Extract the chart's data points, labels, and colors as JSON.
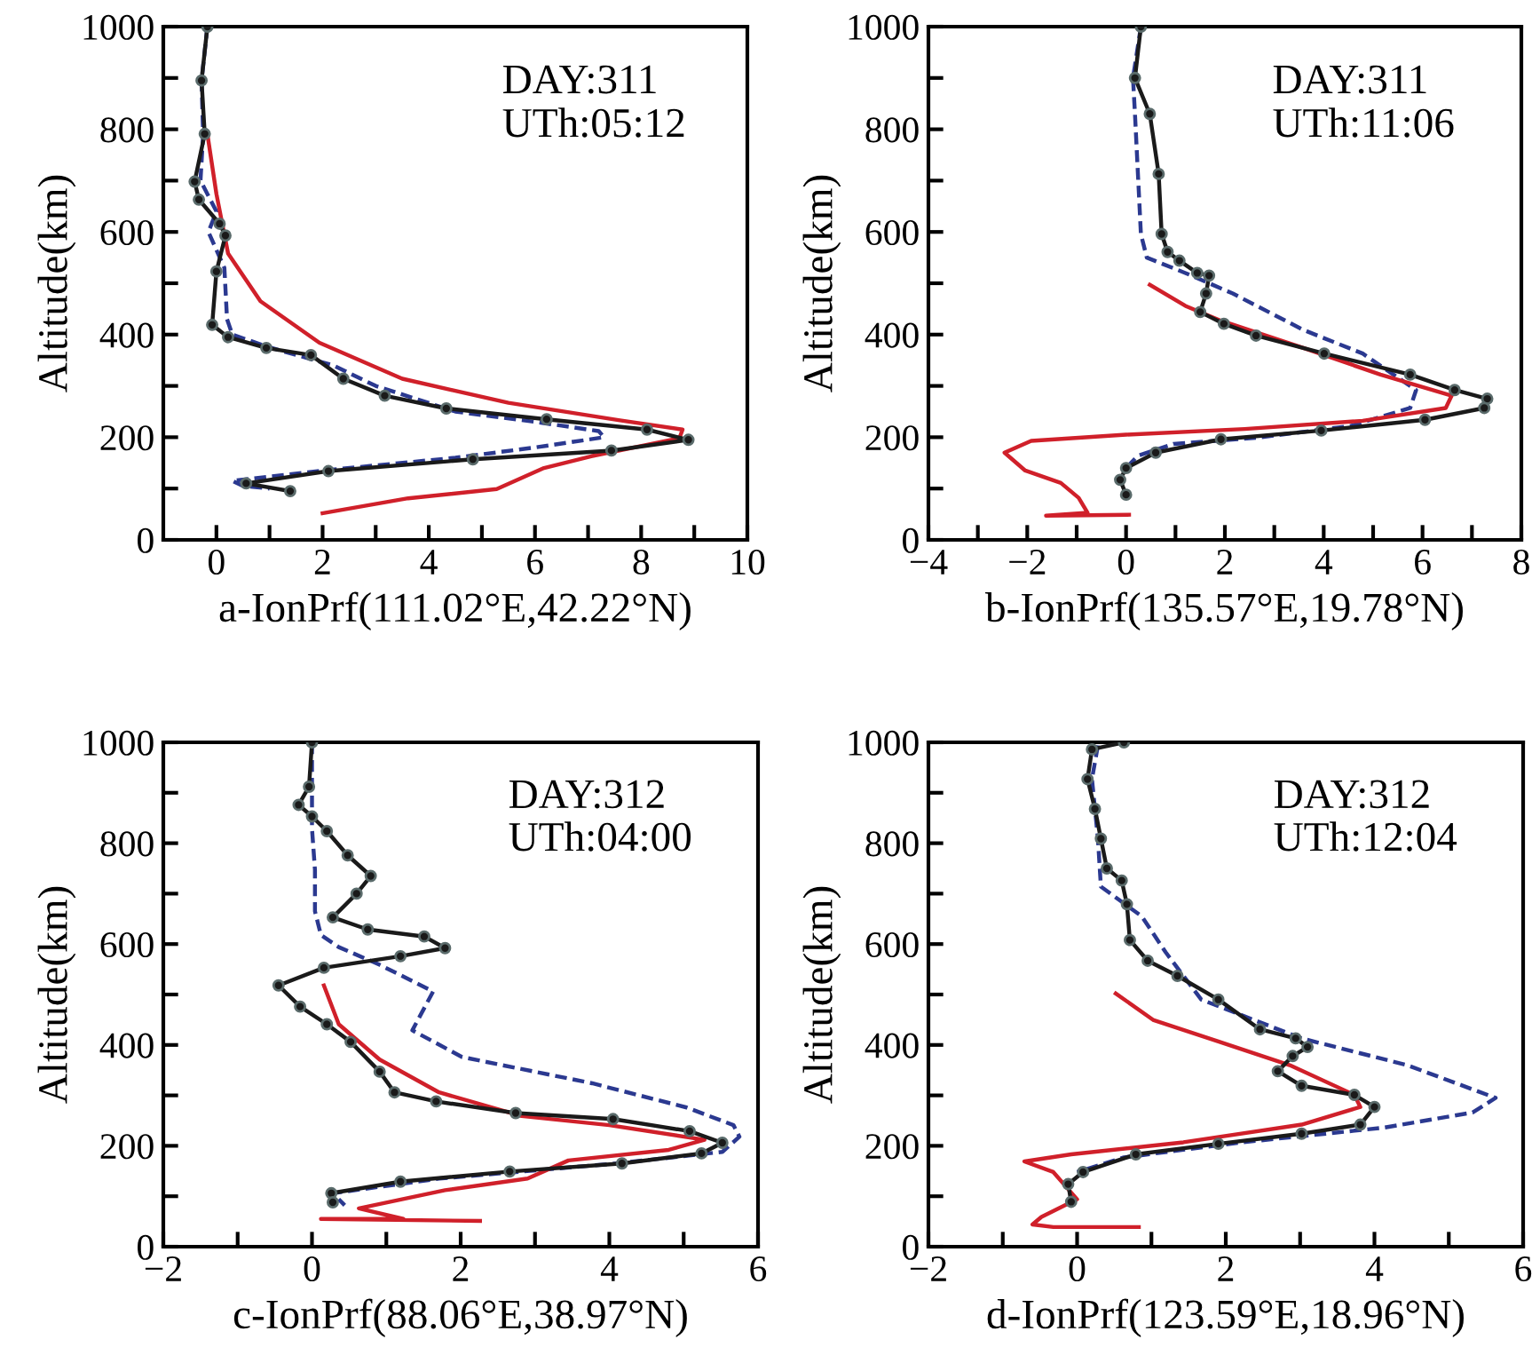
{
  "chart_data": [
    {
      "type": "line",
      "xlabel": "a-IonPrf(111.02°E,42.22°N)",
      "ylabel": "Altitude(km)",
      "annotations": [
        "DAY:311",
        "UTh:05:12"
      ],
      "xlim": [
        -1,
        10
      ],
      "xticks": [
        0,
        {
          "value": 1,
          "label": null
        },
        2,
        {
          "value": 3,
          "label": null
        },
        4,
        {
          "value": 5,
          "label": null
        },
        6,
        {
          "value": 7,
          "label": null
        },
        8,
        {
          "value": 9,
          "label": null
        },
        10
      ],
      "ylim": [
        0,
        1000
      ],
      "yticks": [
        0,
        {
          "value": 100,
          "label": null
        },
        200,
        {
          "value": 300,
          "label": null
        },
        400,
        {
          "value": 500,
          "label": null
        },
        600,
        {
          "value": 700,
          "label": null
        },
        800,
        {
          "value": 900,
          "label": null
        },
        1000
      ],
      "grid": false,
      "legend": false,
      "series": [
        {
          "color": "#2b3990",
          "line_style": "dashed",
          "marker": "none",
          "x": [
            -0.17,
            -0.28,
            -0.25,
            -0.3,
            0.0,
            -0.15,
            0.15,
            0.2,
            0.3,
            1.0,
            2.2,
            3.0,
            4.5,
            6.0,
            7.2,
            7.3,
            6.0,
            4.5,
            2.0,
            0.3,
            0.5,
            1.0
          ],
          "values": [
            1000,
            895,
            790,
            700,
            640,
            600,
            530,
            430,
            400,
            375,
            340,
            300,
            250,
            230,
            212,
            200,
            180,
            160,
            135,
            115,
            105,
            100
          ]
        },
        {
          "color": "#d0202a",
          "line_style": "solid",
          "marker": "none",
          "x": [
            -0.17,
            0,
            0.22,
            0.83,
            1.94,
            3.5,
            5.5,
            7.6,
            8.78,
            8.72,
            7.06,
            6.17,
            5.28,
            3.61,
            2.0
          ],
          "values": [
            791,
            674,
            558,
            465,
            384,
            314,
            267,
            233,
            215,
            198,
            163,
            140,
            99,
            81,
            52
          ]
        },
        {
          "color": "#1a1a1a",
          "line_style": "solid",
          "marker": "circle",
          "x": [
            -0.17,
            -0.28,
            -0.22,
            -0.41,
            -0.33,
            0.06,
            0.17,
            0,
            -0.08,
            0.22,
            0.94,
            1.78,
            2.39,
            3.17,
            4.33,
            6.22,
            8.11,
            8.89,
            7.44,
            4.83,
            2.11,
            0.56,
            1.39
          ],
          "values": [
            1000,
            895,
            791,
            698,
            663,
            616,
            593,
            523,
            419,
            395,
            374,
            360,
            314,
            281,
            256,
            235,
            215,
            195,
            174,
            157,
            134,
            110,
            95
          ]
        }
      ]
    },
    {
      "type": "line",
      "xlabel": "b-IonPrf(135.57°E,19.78°N)",
      "ylabel": "Altitude(km)",
      "annotations": [
        "DAY:311",
        "UTh:11:06"
      ],
      "xlim": [
        -4,
        8
      ],
      "xticks": [
        {
          "value": -4,
          "label": "−4"
        },
        {
          "value": -3,
          "label": null
        },
        {
          "value": -2,
          "label": "−2"
        },
        {
          "value": -1,
          "label": null
        },
        0,
        {
          "value": 1,
          "label": null
        },
        2,
        {
          "value": 3,
          "label": null
        },
        4,
        {
          "value": 5,
          "label": null
        },
        6,
        {
          "value": 7,
          "label": null
        },
        8
      ],
      "ylim": [
        0,
        1000
      ],
      "yticks": [
        0,
        {
          "value": 100,
          "label": null
        },
        200,
        {
          "value": 300,
          "label": null
        },
        400,
        {
          "value": 500,
          "label": null
        },
        600,
        {
          "value": 700,
          "label": null
        },
        800,
        {
          "value": 900,
          "label": null
        },
        1000
      ],
      "grid": false,
      "legend": false,
      "series": [
        {
          "color": "#2b3990",
          "line_style": "dashed",
          "marker": "none",
          "x": [
            0.3,
            0.14,
            0.18,
            0.24,
            0.3,
            0.42,
            1.2,
            2.16,
            3.59,
            4.79,
            5.87,
            5.75,
            4.55,
            2.63,
            0.96,
            0.24,
            0
          ],
          "values": [
            1000,
            900,
            830,
            713,
            596,
            550,
            520,
            480,
            409,
            363,
            292,
            257,
            222,
            199,
            187,
            164,
            140
          ]
        },
        {
          "color": "#d0202a",
          "line_style": "solid",
          "marker": "none",
          "x": [
            0.48,
            1.2,
            1.92,
            3.59,
            5.15,
            6.59,
            6.47,
            4.79,
            2.4,
            0,
            -1.92,
            -2.46,
            -2.04,
            -1.32,
            -0.96,
            -0.78,
            -1.62,
            0.06
          ],
          "values": [
            497,
            456,
            427,
            374,
            322,
            281,
            257,
            232,
            216,
            205,
            193,
            170,
            135,
            111,
            82,
            53,
            47,
            49
          ]
        },
        {
          "color": "#1a1a1a",
          "line_style": "solid",
          "marker": "circle",
          "x": [
            0.3,
            0.18,
            0.48,
            0.66,
            0.72,
            0.84,
            1.08,
            1.44,
            1.68,
            1.62,
            1.5,
            1.98,
            2.63,
            4.01,
            5.75,
            6.65,
            7.31,
            7.25,
            6.05,
            3.95,
            1.92,
            0.6,
            0,
            -0.12,
            0
          ],
          "values": [
            1000,
            900,
            830,
            713,
            596,
            561,
            544,
            520,
            515,
            480,
            444,
            421,
            398,
            363,
            322,
            292,
            275,
            257,
            234,
            213,
            196,
            170,
            140,
            117,
            88
          ]
        }
      ]
    },
    {
      "type": "line",
      "xlabel": "c-IonPrf(88.06°E,38.97°N)",
      "ylabel": "Altitude(km)",
      "annotations": [
        "DAY:312",
        "UTh:04:00"
      ],
      "xlim": [
        -2,
        6
      ],
      "xticks": [
        {
          "value": -2,
          "label": "−2"
        },
        {
          "value": -1,
          "label": null
        },
        0,
        {
          "value": 1,
          "label": null
        },
        2,
        {
          "value": 3,
          "label": null
        },
        4,
        {
          "value": 5,
          "label": null
        },
        6
      ],
      "ylim": [
        0,
        1000
      ],
      "yticks": [
        0,
        {
          "value": 100,
          "label": null
        },
        200,
        {
          "value": 300,
          "label": null
        },
        400,
        {
          "value": 500,
          "label": null
        },
        600,
        {
          "value": 700,
          "label": null
        },
        800,
        {
          "value": 900,
          "label": null
        },
        1000
      ],
      "grid": false,
      "legend": false,
      "series": [
        {
          "color": "#2b3990",
          "line_style": "dashed",
          "marker": "none",
          "x": [
            0,
            0,
            0,
            0.04,
            0.04,
            0.12,
            0.36,
            0.91,
            1.63,
            1.35,
            2.02,
            3.77,
            5.04,
            5.67,
            5.75,
            5.52,
            4.09,
            1.71,
            0.28,
            0.44
          ],
          "values": [
            1000,
            912,
            829,
            747,
            665,
            618,
            594,
            559,
            506,
            429,
            376,
            324,
            276,
            241,
            218,
            188,
            165,
            135,
            106,
            82
          ]
        },
        {
          "color": "#d0202a",
          "line_style": "solid",
          "marker": "none",
          "x": [
            0.16,
            0.36,
            0.91,
            1.71,
            2.82,
            4.0,
            5.28,
            4.8,
            3.45,
            2.9,
            1.79,
            0.63,
            1.23,
            0.12,
            2.26
          ],
          "values": [
            518,
            441,
            371,
            306,
            259,
            241,
            212,
            192,
            171,
            135,
            112,
            76,
            55,
            55,
            51
          ]
        },
        {
          "color": "#1a1a1a",
          "line_style": "solid",
          "marker": "circle",
          "x": [
            0,
            -0.04,
            -0.18,
            0,
            0.2,
            0.48,
            0.79,
            0.6,
            0.28,
            0.75,
            1.51,
            1.79,
            1.19,
            0.16,
            -0.45,
            -0.16,
            0.2,
            0.52,
            0.91,
            1.11,
            1.67,
            2.74,
            4.05,
            5.08,
            5.52,
            5.24,
            4.17,
            2.66,
            1.19,
            0.26,
            0.28
          ],
          "values": [
            1000,
            912,
            876,
            853,
            824,
            776,
            735,
            700,
            653,
            629,
            615,
            592,
            576,
            553,
            518,
            476,
            441,
            406,
            347,
            306,
            288,
            265,
            253,
            229,
            206,
            185,
            165,
            149,
            129,
            106,
            88
          ]
        }
      ]
    },
    {
      "type": "line",
      "xlabel": "d-IonPrf(123.59°E,18.96°N)",
      "ylabel": "Altitude(km)",
      "annotations": [
        "DAY:312",
        "UTh:12:04"
      ],
      "xlim": [
        -2,
        6
      ],
      "xticks": [
        {
          "value": -2,
          "label": "−2"
        },
        {
          "value": -1,
          "label": null
        },
        0,
        {
          "value": 1,
          "label": null
        },
        2,
        {
          "value": 3,
          "label": null
        },
        4,
        {
          "value": 5,
          "label": null
        },
        6
      ],
      "ylim": [
        0,
        1000
      ],
      "yticks": [
        0,
        {
          "value": 100,
          "label": null
        },
        200,
        {
          "value": 300,
          "label": null
        },
        400,
        {
          "value": 500,
          "label": null
        },
        600,
        {
          "value": 700,
          "label": null
        },
        800,
        {
          "value": 900,
          "label": null
        },
        1000
      ],
      "grid": false,
      "legend": false,
      "series": [
        {
          "color": "#2b3990",
          "line_style": "dashed",
          "marker": "none",
          "x": [
            0.28,
            0.2,
            0.28,
            0.32,
            0.87,
            1.19,
            1.67,
            3.02,
            4.44,
            5.63,
            5.32,
            4.13,
            2.22,
            0.63,
            0
          ],
          "values": [
            994,
            927,
            809,
            714,
            655,
            584,
            490,
            413,
            360,
            295,
            266,
            236,
            207,
            177,
            148
          ]
        },
        {
          "color": "#d0202a",
          "line_style": "solid",
          "marker": "none",
          "x": [
            0.52,
            1.03,
            1.9,
            2.86,
            3.73,
            3.81,
            3.02,
            1.43,
            -0.08,
            -0.71,
            -0.32,
            0,
            -0.48,
            -0.6,
            -0.32,
            0.83
          ],
          "values": [
            502,
            449,
            407,
            360,
            301,
            277,
            242,
            207,
            183,
            169,
            148,
            94,
            59,
            44,
            39,
            39
          ]
        },
        {
          "color": "#1a1a1a",
          "line_style": "solid",
          "marker": "circle",
          "x": [
            0.63,
            0.2,
            0.14,
            0.24,
            0.32,
            0.4,
            0.6,
            0.67,
            0.71,
            0.95,
            1.35,
            1.9,
            2.46,
            2.94,
            3.1,
            2.9,
            2.7,
            3.02,
            3.73,
            4.0,
            3.81,
            3.02,
            1.9,
            0.79,
            0.08,
            -0.12,
            -0.08
          ],
          "values": [
            1000,
            986,
            927,
            868,
            809,
            750,
            726,
            679,
            608,
            567,
            537,
            490,
            431,
            413,
            396,
            378,
            348,
            319,
            301,
            277,
            242,
            224,
            204,
            183,
            148,
            124,
            89
          ]
        }
      ]
    }
  ]
}
